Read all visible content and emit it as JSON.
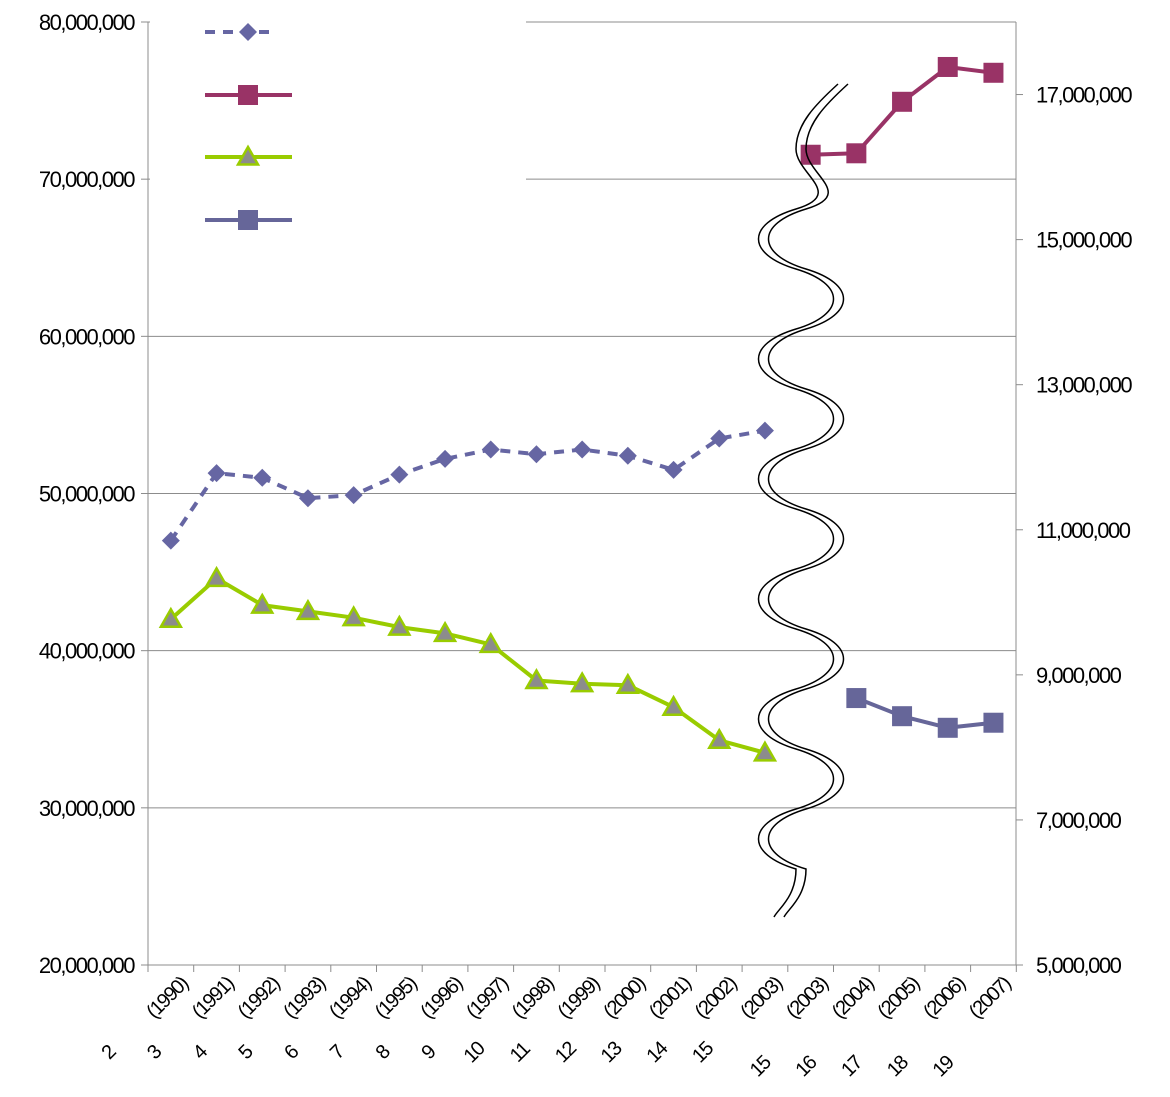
{
  "chart_data": {
    "type": "line",
    "title": "",
    "categories": [
      "2 (1990)",
      "3 (1991)",
      "4 (1992)",
      "5 (1993)",
      "6 (1994)",
      "7 (1995)",
      "8 (1996)",
      "9 (1997)",
      "10 (1998)",
      "11 (1999)",
      "12 (2000)",
      "13 (2001)",
      "14 (2002)",
      "15 (2003)",
      "15 (2003)",
      "16 (2004)",
      "17 (2005)",
      "18 (2006)",
      "19 (2007)"
    ],
    "category_labels": {
      "years": [
        "(1990)",
        "(1991)",
        "(1992)",
        "(1993)",
        "(1994)",
        "(1995)",
        "(1996)",
        "(1997)",
        "(1998)",
        "(1999)",
        "(2000)",
        "(2001)",
        "(2002)",
        "(2003)",
        "(2003)",
        "(2004)",
        "(2005)",
        "(2006)",
        "(2007)"
      ],
      "numbers": [
        "2",
        "3",
        "4",
        "5",
        "6",
        "7",
        "8",
        "9",
        "10",
        "11",
        "12",
        "13",
        "14",
        "15",
        "15",
        "16",
        "17",
        "18",
        "19"
      ]
    },
    "left_axis": {
      "ylim": [
        20000000,
        80000000
      ],
      "ticks": [
        "20,000,000",
        "30,000,000",
        "40,000,000",
        "50,000,000",
        "60,000,000",
        "70,000,000",
        "80,000,000"
      ],
      "tick_values": [
        20000000,
        30000000,
        40000000,
        50000000,
        60000000,
        70000000,
        80000000
      ]
    },
    "right_axis": {
      "ylim": [
        5000000,
        18000000
      ],
      "ticks": [
        "5,000,000",
        "7,000,000",
        "9,000,000",
        "11,000,000",
        "13,000,000",
        "15,000,000",
        "17,000,000"
      ],
      "tick_values": [
        5000000,
        7000000,
        9000000,
        11000000,
        13000000,
        15000000,
        17000000
      ]
    },
    "grid": true,
    "axis_break": "between (2003) and (2003)",
    "legend_position": "top-left",
    "series": [
      {
        "axis": "left",
        "style": "dashed",
        "marker": "diamond",
        "color": "#6666a3",
        "values": [
          47000000,
          51300000,
          51000000,
          49700000,
          49900000,
          51200000,
          52200000,
          52800000,
          52500000,
          52800000,
          52400000,
          51500000,
          53500000,
          54000000,
          null,
          null,
          null,
          null,
          null
        ]
      },
      {
        "axis": "right",
        "style": "solid",
        "marker": "square",
        "color": "#993366",
        "values": [
          null,
          null,
          null,
          null,
          null,
          null,
          null,
          null,
          null,
          null,
          null,
          null,
          null,
          null,
          16170000,
          16190000,
          16900000,
          17380000,
          17300000
        ]
      },
      {
        "axis": "left",
        "style": "solid",
        "marker": "triangle",
        "color": "#99cc00",
        "values": [
          42000000,
          44600000,
          42900000,
          42500000,
          42100000,
          41500000,
          41100000,
          40400000,
          38100000,
          37900000,
          37800000,
          36400000,
          34300000,
          33500000,
          null,
          null,
          null,
          null,
          null
        ]
      },
      {
        "axis": "right",
        "style": "solid",
        "marker": "square",
        "color": "#666699",
        "values": [
          null,
          null,
          null,
          null,
          null,
          null,
          null,
          null,
          null,
          null,
          null,
          null,
          null,
          null,
          null,
          8680000,
          8430000,
          8270000,
          8340000
        ]
      }
    ]
  }
}
